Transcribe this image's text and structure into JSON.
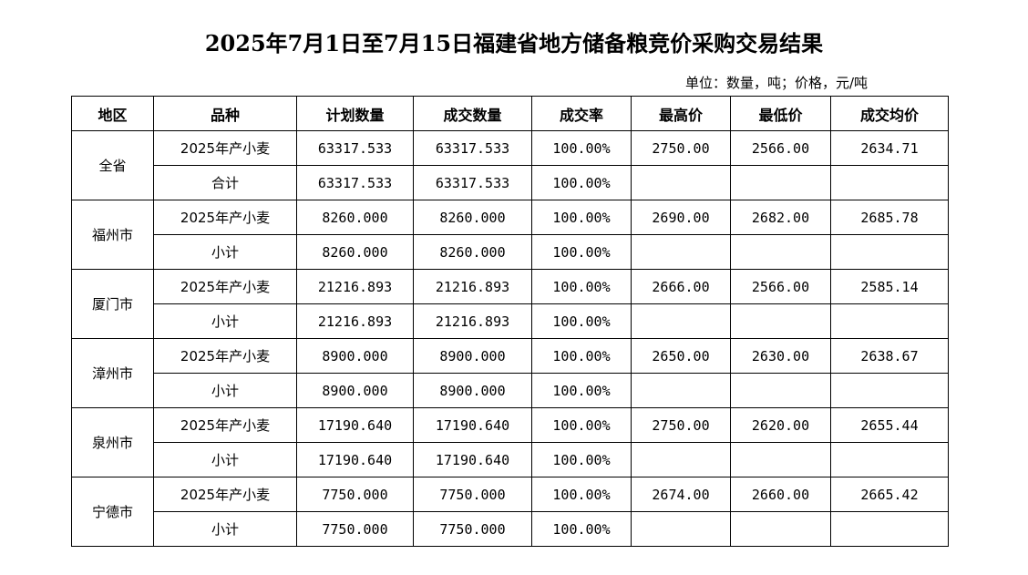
{
  "title": "2025年7月1日至7月15日福建省地方储备粮竞价采购交易结果",
  "unit_note": "单位：数量，吨；价格，元/吨",
  "table": {
    "headers": [
      "地区",
      "品种",
      "计划数量",
      "成交数量",
      "成交率",
      "最高价",
      "最低价",
      "成交均价"
    ],
    "regions": [
      {
        "name": "全省",
        "rows": [
          [
            "2025年产小麦",
            "63317.533",
            "63317.533",
            "100.00%",
            "2750.00",
            "2566.00",
            "2634.71"
          ],
          [
            "合计",
            "63317.533",
            "63317.533",
            "100.00%",
            "",
            "",
            ""
          ]
        ]
      },
      {
        "name": "福州市",
        "rows": [
          [
            "2025年产小麦",
            "8260.000",
            "8260.000",
            "100.00%",
            "2690.00",
            "2682.00",
            "2685.78"
          ],
          [
            "小计",
            "8260.000",
            "8260.000",
            "100.00%",
            "",
            "",
            ""
          ]
        ]
      },
      {
        "name": "厦门市",
        "rows": [
          [
            "2025年产小麦",
            "21216.893",
            "21216.893",
            "100.00%",
            "2666.00",
            "2566.00",
            "2585.14"
          ],
          [
            "小计",
            "21216.893",
            "21216.893",
            "100.00%",
            "",
            "",
            ""
          ]
        ]
      },
      {
        "name": "漳州市",
        "rows": [
          [
            "2025年产小麦",
            "8900.000",
            "8900.000",
            "100.00%",
            "2650.00",
            "2630.00",
            "2638.67"
          ],
          [
            "小计",
            "8900.000",
            "8900.000",
            "100.00%",
            "",
            "",
            ""
          ]
        ]
      },
      {
        "name": "泉州市",
        "rows": [
          [
            "2025年产小麦",
            "17190.640",
            "17190.640",
            "100.00%",
            "2750.00",
            "2620.00",
            "2655.44"
          ],
          [
            "小计",
            "17190.640",
            "17190.640",
            "100.00%",
            "",
            "",
            ""
          ]
        ]
      },
      {
        "name": "宁德市",
        "rows": [
          [
            "2025年产小麦",
            "7750.000",
            "7750.000",
            "100.00%",
            "2674.00",
            "2660.00",
            "2665.42"
          ],
          [
            "小计",
            "7750.000",
            "7750.000",
            "100.00%",
            "",
            "",
            ""
          ]
        ]
      }
    ]
  }
}
